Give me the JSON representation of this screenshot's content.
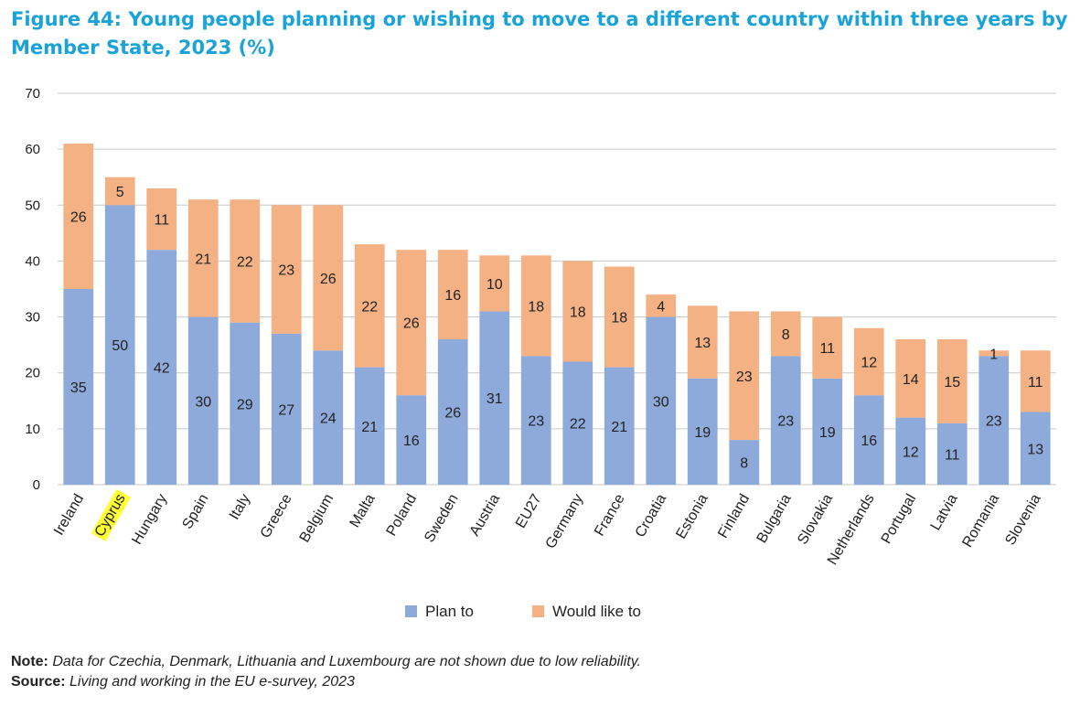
{
  "title": "Figure 44: Young people planning or wishing to move to a different country within three years by Member State, 2023 (%)",
  "note": {
    "label": "Note:",
    "text": "Data for Czechia, Denmark, Lithuania and Luxembourg are not shown due to low reliability."
  },
  "source": {
    "label": "Source:",
    "text": "Living and working in the EU e-survey, 2023"
  },
  "chart_data": {
    "type": "bar",
    "stacked": true,
    "categories": [
      "Ireland",
      "Cyprus",
      "Hungary",
      "Spain",
      "Italy",
      "Greece",
      "Belgium",
      "Malta",
      "Poland",
      "Sweden",
      "Austria",
      "EU27",
      "Germany",
      "France",
      "Croatia",
      "Estonia",
      "Finland",
      "Bulgaria",
      "Slovakia",
      "Netherlands",
      "Portugal",
      "Latvia",
      "Romania",
      "Slovenia"
    ],
    "highlighted_category": "Cyprus",
    "highlight_color": "#ffff33",
    "series": [
      {
        "name": "Plan to",
        "color": "#8eaadb",
        "values": [
          35,
          50,
          42,
          30,
          29,
          27,
          24,
          21,
          16,
          26,
          31,
          23,
          22,
          21,
          30,
          19,
          8,
          23,
          19,
          16,
          12,
          11,
          23,
          13
        ]
      },
      {
        "name": "Would like to",
        "color": "#f4b183",
        "values": [
          26,
          5,
          11,
          21,
          22,
          23,
          26,
          22,
          26,
          16,
          10,
          18,
          18,
          18,
          4,
          13,
          23,
          8,
          11,
          12,
          14,
          15,
          1,
          11
        ]
      }
    ],
    "ylim": [
      0,
      70
    ],
    "yticks": [
      0,
      10,
      20,
      30,
      40,
      50,
      60,
      70
    ],
    "grid": true,
    "legend": "bottom"
  }
}
